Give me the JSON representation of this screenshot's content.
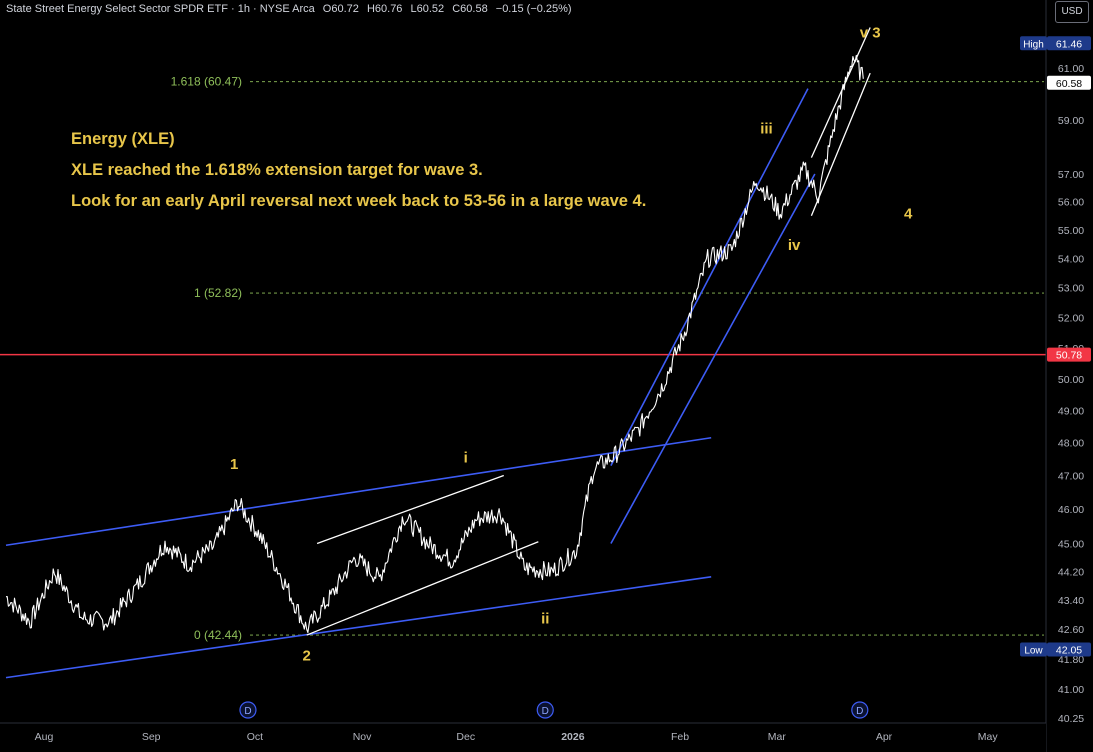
{
  "header": {
    "title": "State Street Energy Select Sector SPDR ETF · 1h · NYSE Arca",
    "open": "O60.72",
    "high": "H60.76",
    "low": "L60.52",
    "close": "C60.58",
    "change": "−0.15 (−0.25%)"
  },
  "currency_button": "USD",
  "annotation": {
    "title": "Energy (XLE)",
    "line1": "XLE reached the 1.618% extension target for wave 3.",
    "line2": "Look for an early April reversal next week back to 53-56 in a large wave 4."
  },
  "colors": {
    "background": "#000000",
    "price": "#ffffff",
    "channel": "#3d5cf5",
    "fib": "#8fbf5a",
    "wave_label": "#e8c64a",
    "resistance": "#f23645"
  },
  "chart_data": {
    "type": "line",
    "title": "",
    "scale": "log",
    "ylim": [
      40.25,
      62.8
    ],
    "y_ticks": [
      "40.25",
      "41.00",
      "41.80",
      "42.60",
      "43.40",
      "44.20",
      "45.00",
      "46.00",
      "47.00",
      "48.00",
      "49.00",
      "50.00",
      "51.00",
      "52.00",
      "53.00",
      "54.00",
      "55.00",
      "56.00",
      "57.00",
      "59.00",
      "61.00"
    ],
    "x_ticks": [
      "Aug",
      "Sep",
      "Oct",
      "Nov",
      "Dec",
      "2026",
      "Feb",
      "Mar",
      "Apr",
      "May"
    ],
    "grid": false,
    "price_path": {
      "x": [
        "2025-07-21",
        "2025-07-28",
        "2025-08-04",
        "2025-08-12",
        "2025-08-20",
        "2025-08-28",
        "2025-09-05",
        "2025-09-12",
        "2025-09-19",
        "2025-09-26",
        "2025-10-02",
        "2025-10-09",
        "2025-10-16",
        "2025-10-23",
        "2025-10-30",
        "2025-11-06",
        "2025-11-13",
        "2025-11-20",
        "2025-11-27",
        "2025-12-04",
        "2025-12-11",
        "2025-12-18",
        "2025-12-26",
        "2026-01-02",
        "2026-01-07",
        "2026-01-13",
        "2026-01-20",
        "2026-01-27",
        "2026-02-02",
        "2026-02-09",
        "2026-02-16",
        "2026-02-23",
        "2026-03-02",
        "2026-03-09",
        "2026-03-13",
        "2026-03-18",
        "2026-03-23",
        "2026-03-26"
      ],
      "y": [
        43.5,
        42.8,
        44.2,
        42.9,
        42.8,
        43.8,
        45.0,
        44.4,
        44.9,
        46.2,
        45.3,
        44.0,
        42.6,
        43.5,
        44.6,
        44.0,
        45.8,
        45.0,
        44.5,
        45.7,
        45.9,
        44.3,
        44.2,
        44.8,
        47.2,
        47.6,
        48.4,
        49.8,
        51.4,
        54.0,
        54.3,
        56.8,
        55.6,
        57.2,
        56.2,
        59.0,
        61.46,
        60.58
      ]
    },
    "horizontal_levels": [
      {
        "label": "1.618 (60.47)",
        "value": 60.47,
        "style": "dashed",
        "color": "#8fbf5a"
      },
      {
        "label": "1 (52.82)",
        "value": 52.82,
        "style": "dashed",
        "color": "#8fbf5a"
      },
      {
        "label": "0 (42.44)",
        "value": 42.44,
        "style": "dashed",
        "color": "#8fbf5a"
      },
      {
        "label": "",
        "value": 50.78,
        "style": "solid",
        "color": "#f23645"
      }
    ],
    "price_badges": [
      {
        "label": "High",
        "value": "61.46"
      },
      {
        "label": "",
        "value": "60.58"
      },
      {
        "label": "",
        "value": "50.78"
      },
      {
        "label": "Low",
        "value": "42.05"
      }
    ],
    "wave_labels": [
      {
        "text": "1",
        "x": "2025-09-25",
        "y": 47.2
      },
      {
        "text": "2",
        "x": "2025-10-16",
        "y": 41.75
      },
      {
        "text": "i",
        "x": "2025-12-01",
        "y": 47.4
      },
      {
        "text": "ii",
        "x": "2025-12-24",
        "y": 42.75
      },
      {
        "text": "iii",
        "x": "2026-02-26",
        "y": 58.5
      },
      {
        "text": "iv",
        "x": "2026-03-06",
        "y": 54.3
      },
      {
        "text": "v 3",
        "x": "2026-03-28",
        "y": 62.2
      },
      {
        "text": "4",
        "x": "2026-04-08",
        "y": 55.4
      }
    ],
    "event_markers": [
      "D",
      "D",
      "D"
    ]
  }
}
